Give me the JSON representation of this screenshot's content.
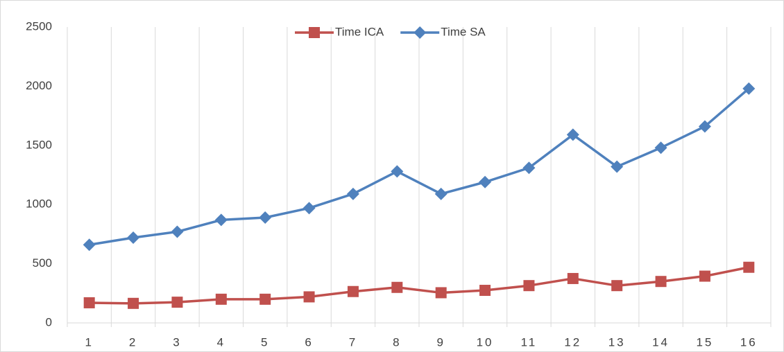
{
  "chart_data": {
    "type": "line",
    "categories": [
      "1",
      "2",
      "3",
      "4",
      "5",
      "6",
      "7",
      "8",
      "9",
      "10",
      "11",
      "12",
      "13",
      "14",
      "15",
      "16"
    ],
    "series": [
      {
        "name": "Time ICA",
        "color": "#c0504d",
        "marker": "square",
        "values": [
          170,
          165,
          175,
          200,
          200,
          220,
          265,
          300,
          255,
          275,
          315,
          375,
          315,
          350,
          395,
          470
        ]
      },
      {
        "name": "Time SA",
        "color": "#4f81bd",
        "marker": "diamond",
        "values": [
          660,
          720,
          770,
          870,
          890,
          970,
          1090,
          1280,
          1090,
          1190,
          1310,
          1590,
          1320,
          1480,
          1660,
          1980
        ]
      }
    ],
    "ylim": [
      0,
      2500
    ],
    "yticks": [
      0,
      500,
      1000,
      1500,
      2000,
      2500
    ],
    "legend": "top",
    "grid": "vertical"
  }
}
